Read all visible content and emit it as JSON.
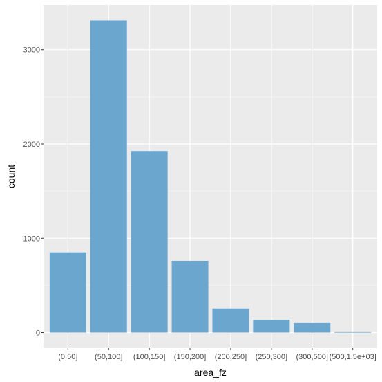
{
  "chart_data": {
    "type": "bar",
    "title": "",
    "xlabel": "area_fz",
    "ylabel": "count",
    "categories": [
      "(0,50]",
      "(50,100]",
      "(100,150]",
      "(150,200]",
      "(200,250]",
      "(250,300]",
      "(300,500]",
      "(500,1.5e+03]"
    ],
    "values": [
      850,
      3310,
      1925,
      760,
      255,
      135,
      100,
      5
    ],
    "ylim": [
      -165,
      3475
    ],
    "yticks": [
      0,
      1000,
      2000,
      3000
    ],
    "ytick_labels": [
      "0",
      "1000",
      "2000",
      "3000"
    ],
    "grid": true,
    "legend": "none",
    "colors": {
      "bar": "#6ba6ce",
      "panel": "#ebebeb",
      "grid_major": "#ffffff",
      "grid_minor": "#f5f5f5",
      "tick_text": "#4d4d4d",
      "title_text": "#000000"
    }
  }
}
